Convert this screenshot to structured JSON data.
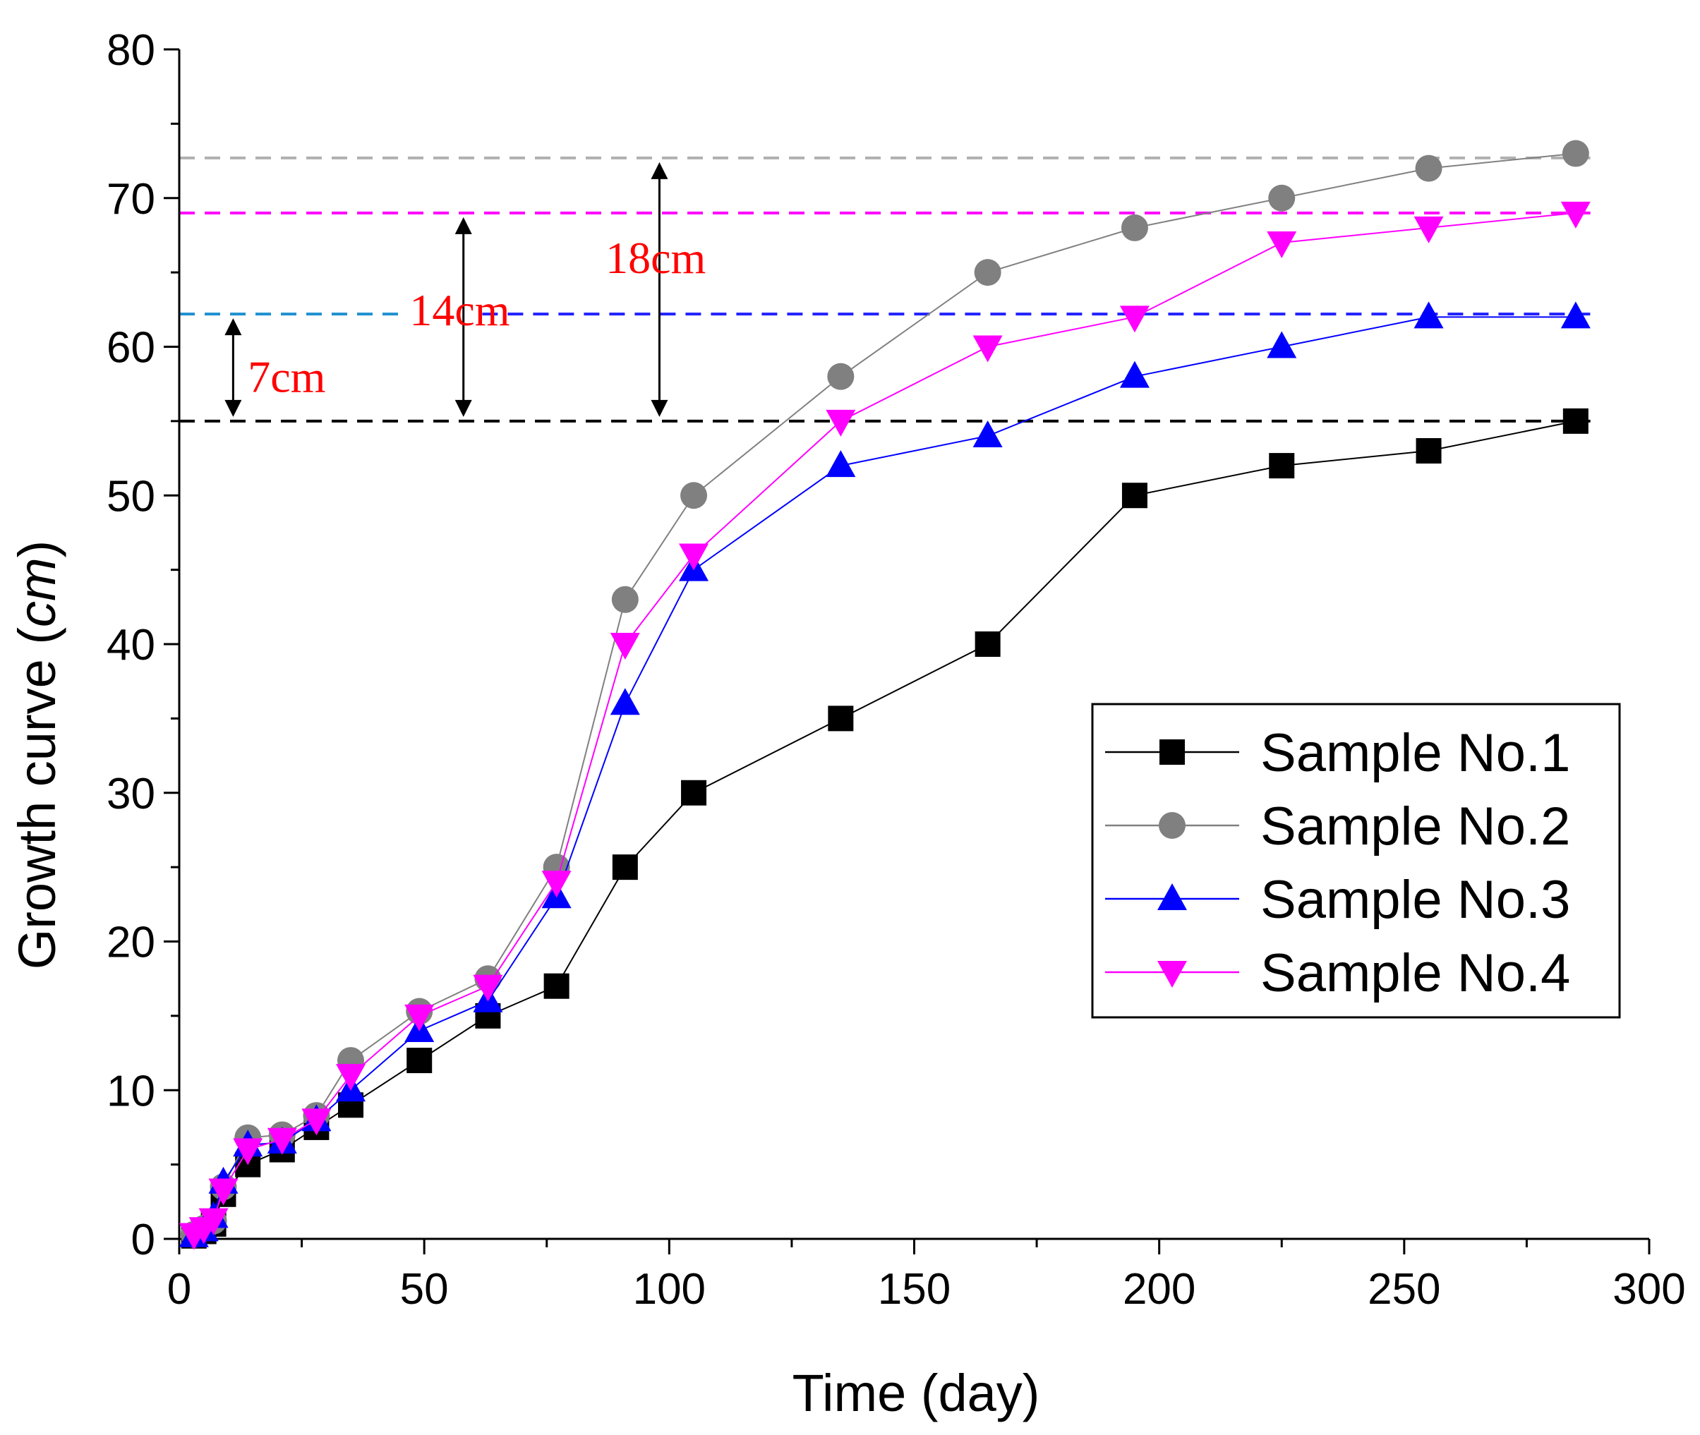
{
  "chart_data": {
    "type": "line",
    "xlabel": "Time (day)",
    "ylabel_main": "Growth curve (",
    "ylabel_unit": "cm",
    "ylabel_close": ")",
    "xlim": [
      0,
      300
    ],
    "ylim": [
      0,
      80
    ],
    "xticks": [
      0,
      50,
      100,
      150,
      200,
      250,
      300
    ],
    "yticks": [
      0,
      10,
      20,
      30,
      40,
      50,
      60,
      70,
      80
    ],
    "legend_position": "bottom-right",
    "series": [
      {
        "name": "Sample No.1",
        "color": "#000000",
        "marker": "square",
        "x": [
          3,
          5,
          7,
          9,
          14,
          21,
          28,
          35,
          49,
          63,
          77,
          91,
          105,
          135,
          165,
          195,
          225,
          255,
          285
        ],
        "y": [
          0.2,
          0.5,
          1,
          3,
          5,
          6,
          7.5,
          9,
          12,
          15,
          17,
          25,
          30,
          35,
          40,
          50,
          52,
          53,
          55
        ]
      },
      {
        "name": "Sample No.2",
        "color": "#808080",
        "marker": "circle",
        "x": [
          3,
          5,
          7,
          9,
          14,
          21,
          28,
          35,
          49,
          63,
          77,
          91,
          105,
          135,
          165,
          195,
          225,
          255,
          285
        ],
        "y": [
          0.3,
          0.7,
          1.2,
          3.5,
          6.8,
          7,
          8.3,
          12,
          15.3,
          17.5,
          25,
          43,
          50,
          58,
          65,
          68,
          70,
          72,
          73
        ]
      },
      {
        "name": "Sample No.3",
        "color": "#0000ff",
        "marker": "triangle-up",
        "x": [
          3,
          5,
          7,
          9,
          14,
          21,
          28,
          35,
          49,
          63,
          77,
          91,
          105,
          135,
          165,
          195,
          225,
          255,
          285
        ],
        "y": [
          0.2,
          0.6,
          1.5,
          3.8,
          6.3,
          6.5,
          8,
          10,
          14,
          16,
          23,
          36,
          45,
          52,
          54,
          58,
          60,
          62,
          62
        ]
      },
      {
        "name": "Sample No.4",
        "color": "#ff00ff",
        "marker": "triangle-down",
        "x": [
          3,
          5,
          7,
          9,
          14,
          21,
          28,
          35,
          49,
          63,
          77,
          91,
          105,
          135,
          165,
          195,
          225,
          255,
          285
        ],
        "y": [
          0.3,
          0.7,
          1.3,
          3.3,
          6,
          6.7,
          8,
          11,
          15,
          17,
          24,
          40,
          46,
          55,
          60,
          62,
          67,
          68,
          69
        ]
      }
    ],
    "reference_lines": [
      {
        "y": 72.7,
        "color": "#b0b0b0"
      },
      {
        "y": 69,
        "color": "#ff00ff"
      },
      {
        "y": 62.2,
        "color": "#2020ff",
        "segment_color": "#1e90d0",
        "segment_x_end": 46
      },
      {
        "y": 55,
        "color": "#000000"
      }
    ],
    "annotations": [
      {
        "label": "7cm",
        "arrow_x": 11,
        "from": 55,
        "to": 62.2,
        "label_x": 14,
        "label_y": 58,
        "color": "#ff0000"
      },
      {
        "label": "14cm",
        "arrow_x": 58,
        "from": 55,
        "to": 69,
        "label_x": 47,
        "label_y": 62.5,
        "color": "#ff0000"
      },
      {
        "label": "18cm",
        "arrow_x": 98,
        "from": 55,
        "to": 72.7,
        "label_x": 87,
        "label_y": 66,
        "color": "#ff0000"
      }
    ]
  }
}
